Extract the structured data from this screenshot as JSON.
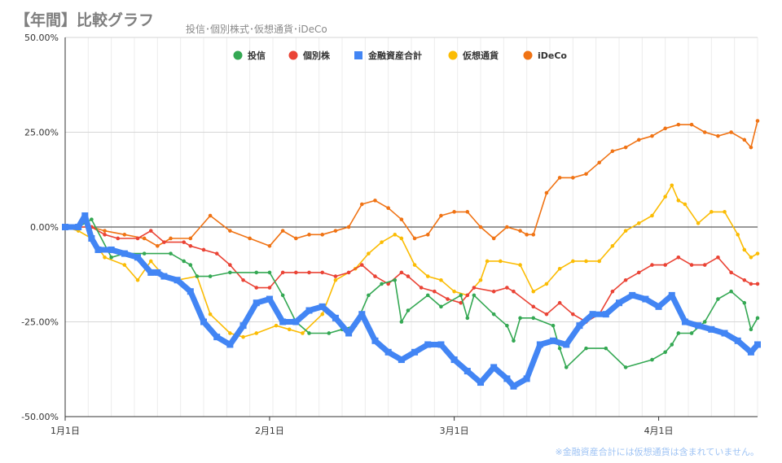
{
  "chart_data": {
    "type": "line",
    "title": "【年間】比較グラフ",
    "subtitle": "投信･個別株式･仮想通貨･iDeCo",
    "footnote": "※金融資産合計には仮想通貨は含まれていません。",
    "yticks": [
      "50.00%",
      "25.00%",
      "0.00%",
      "-25.00%",
      "-50.00%"
    ],
    "ylim": [
      -50,
      50
    ],
    "xlabels": [
      {
        "day": 1,
        "label": "1月1日"
      },
      {
        "day": 32,
        "label": "2月1日"
      },
      {
        "day": 60,
        "label": "3月1日"
      },
      {
        "day": 91,
        "label": "4月1日"
      }
    ],
    "xlim": [
      1,
      106
    ],
    "legend_position": "top",
    "series": [
      {
        "name": "投信",
        "color": "#34a853",
        "x": [
          1,
          3,
          5,
          8,
          10,
          13,
          17,
          19,
          20,
          21,
          23,
          26,
          30,
          32,
          34,
          36,
          38,
          41,
          43,
          45,
          47,
          49,
          51,
          52,
          53,
          56,
          58,
          61,
          62,
          63,
          66,
          68,
          69,
          70,
          72,
          75,
          76,
          77,
          80,
          83,
          86,
          90,
          92,
          93,
          94,
          96,
          98,
          100,
          102,
          104,
          105,
          106
        ],
        "y": [
          0,
          0,
          2,
          -8,
          -7,
          -7,
          -7,
          -9,
          -10,
          -13,
          -13,
          -12,
          -12,
          -12,
          -18,
          -25,
          -28,
          -28,
          -27,
          -26,
          -18,
          -15,
          -14,
          -25,
          -22,
          -18,
          -21,
          -18,
          -24,
          -18,
          -23,
          -26,
          -30,
          -24,
          -24,
          -26,
          -32,
          -37,
          -32,
          -32,
          -37,
          -35,
          -33,
          -31,
          -28,
          -28,
          -25,
          -19,
          -17,
          -20,
          -27,
          -24
        ]
      },
      {
        "name": "個別株",
        "color": "#ea4335",
        "x": [
          1,
          3,
          5,
          7,
          9,
          12,
          14,
          16,
          19,
          20,
          22,
          24,
          26,
          28,
          30,
          32,
          34,
          36,
          38,
          40,
          42,
          44,
          46,
          48,
          50,
          52,
          53,
          55,
          57,
          59,
          61,
          62,
          63,
          66,
          68,
          69,
          72,
          74,
          76,
          78,
          80,
          82,
          84,
          86,
          88,
          90,
          92,
          94,
          96,
          98,
          100,
          102,
          104,
          105,
          106
        ],
        "y": [
          0,
          0,
          0,
          -2,
          -3,
          -3,
          -1,
          -4,
          -4,
          -5,
          -6,
          -7,
          -10,
          -14,
          -16,
          -16,
          -12,
          -12,
          -12,
          -12,
          -13,
          -12,
          -10,
          -13,
          -15,
          -12,
          -13,
          -16,
          -17,
          -19,
          -20,
          -18,
          -16,
          -17,
          -16,
          -17,
          -21,
          -23,
          -20,
          -23,
          -25,
          -23,
          -17,
          -14,
          -12,
          -10,
          -10,
          -8,
          -10,
          -10,
          -8,
          -12,
          -14,
          -15,
          -15
        ]
      },
      {
        "name": "仮想通貨",
        "color": "#fbbc04",
        "x": [
          1,
          3,
          5,
          7,
          10,
          12,
          14,
          16,
          18,
          21,
          23,
          26,
          28,
          30,
          33,
          35,
          37,
          40,
          42,
          45,
          47,
          49,
          51,
          52,
          54,
          56,
          58,
          60,
          62,
          64,
          65,
          67,
          70,
          72,
          74,
          76,
          78,
          80,
          82,
          84,
          86,
          88,
          90,
          92,
          93,
          94,
          95,
          97,
          99,
          101,
          103,
          104,
          105,
          106
        ],
        "y": [
          0,
          -1,
          -3,
          -8,
          -10,
          -14,
          -9,
          -13,
          -14,
          -13,
          -23,
          -28,
          -29,
          -28,
          -26,
          -27,
          -28,
          -23,
          -14,
          -11,
          -7,
          -4,
          -2,
          -3,
          -10,
          -13,
          -14,
          -17,
          -18,
          -14,
          -9,
          -9,
          -10,
          -17,
          -15,
          -11,
          -9,
          -9,
          -9,
          -5,
          -1,
          1,
          3,
          8,
          11,
          7,
          6,
          1,
          4,
          4,
          -2,
          -6,
          -8,
          -7
        ]
      },
      {
        "name": "iDeCo",
        "color": "#f07314",
        "x": [
          1,
          3,
          5,
          7,
          10,
          13,
          15,
          17,
          20,
          23,
          26,
          29,
          32,
          34,
          36,
          38,
          40,
          42,
          44,
          46,
          48,
          50,
          52,
          54,
          56,
          58,
          60,
          62,
          64,
          66,
          68,
          70,
          71,
          72,
          74,
          76,
          78,
          80,
          82,
          84,
          86,
          88,
          90,
          92,
          94,
          96,
          98,
          100,
          102,
          104,
          105,
          106
        ],
        "y": [
          0,
          0,
          0,
          -1,
          -2,
          -3,
          -5,
          -3,
          -3,
          3,
          -1,
          -3,
          -5,
          -1,
          -3,
          -2,
          -2,
          -1,
          0,
          6,
          7,
          5,
          2,
          -3,
          -2,
          3,
          4,
          4,
          0,
          -3,
          0,
          -1,
          -2,
          -2,
          9,
          13,
          13,
          14,
          17,
          20,
          21,
          23,
          24,
          26,
          27,
          27,
          25,
          24,
          25,
          23,
          21,
          28
        ]
      },
      {
        "name": "金融資産合計",
        "color": "#4285f4",
        "x": [
          1,
          3,
          4,
          5,
          6,
          8,
          10,
          12,
          14,
          15,
          16,
          18,
          20,
          22,
          24,
          26,
          28,
          30,
          32,
          34,
          36,
          38,
          40,
          42,
          44,
          46,
          48,
          50,
          52,
          54,
          56,
          58,
          60,
          62,
          64,
          66,
          68,
          69,
          71,
          73,
          75,
          77,
          79,
          81,
          83,
          85,
          87,
          89,
          91,
          93,
          95,
          97,
          99,
          101,
          103,
          105,
          106
        ],
        "y": [
          0,
          0,
          3,
          -3,
          -6,
          -6,
          -7,
          -8,
          -12,
          -12,
          -13,
          -14,
          -17,
          -25,
          -29,
          -31,
          -26,
          -20,
          -19,
          -25,
          -25,
          -22,
          -21,
          -24,
          -28,
          -23,
          -30,
          -33,
          -35,
          -33,
          -31,
          -31,
          -35,
          -38,
          -41,
          -37,
          -40,
          -42,
          -40,
          -31,
          -30,
          -31,
          -26,
          -23,
          -23,
          -20,
          -18,
          -19,
          -21,
          -18,
          -25,
          -26,
          -27,
          -28,
          -30,
          -33,
          -31
        ]
      }
    ]
  }
}
